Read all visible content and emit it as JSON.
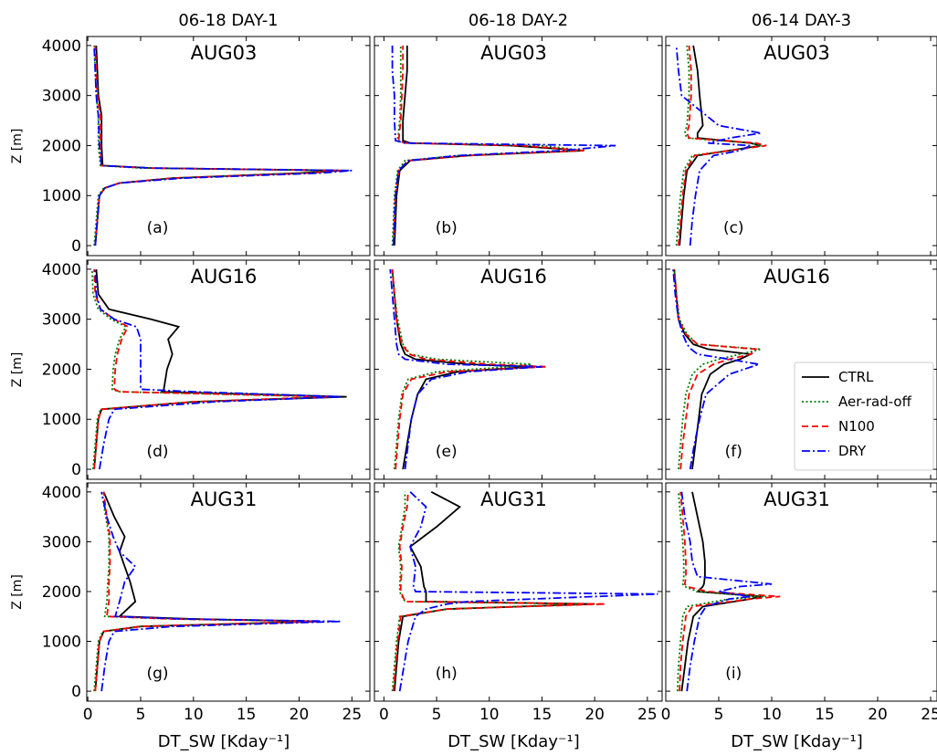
{
  "chart_data": [
    {
      "type": "line",
      "title": "06-18 DAY-1",
      "panel_title": "AUG03",
      "annotation": "(a)",
      "ylabel": "Z [m]",
      "y": [
        0,
        500,
        1000,
        1150,
        1250,
        1350,
        1450,
        1500,
        1550,
        1600,
        2000,
        2600,
        3000,
        3500,
        4000
      ],
      "series": [
        {
          "color": "#000000",
          "linestyle": "solid",
          "values": [
            0.7,
            0.9,
            1.1,
            1.6,
            3,
            8,
            20,
            24,
            6,
            1.4,
            1.3,
            1.3,
            1.0,
            0.9,
            0.8
          ]
        },
        {
          "color": "#008000",
          "linestyle": "dotted",
          "values": [
            0.6,
            0.8,
            1.0,
            1.5,
            3,
            8,
            20,
            23,
            5,
            1.2,
            1.0,
            1.0,
            0.8,
            0.7,
            0.6
          ]
        },
        {
          "color": "#ff0000",
          "linestyle": "dashed",
          "values": [
            0.7,
            0.9,
            1.1,
            1.6,
            3,
            8,
            21,
            24,
            6,
            1.3,
            1.2,
            1.2,
            0.9,
            0.8,
            0.7
          ]
        },
        {
          "color": "#0000ff",
          "linestyle": "dashdot",
          "values": [
            0.7,
            0.9,
            1.1,
            1.6,
            3,
            9,
            22,
            25,
            6,
            1.3,
            1.1,
            1.0,
            0.8,
            0.7,
            0.6
          ]
        }
      ],
      "xlim": [
        -0.1,
        26.7
      ],
      "ylim": [
        -200,
        4180
      ],
      "xticks": [
        0,
        5,
        10,
        15,
        20,
        25
      ],
      "yticks": [
        0,
        1000,
        2000,
        3000,
        4000
      ]
    },
    {
      "type": "line",
      "title": "06-18 DAY-2",
      "panel_title": "AUG03",
      "annotation": "(b)",
      "y": [
        0,
        500,
        1000,
        1500,
        1700,
        1800,
        1900,
        2000,
        2050,
        2100,
        2500,
        3000,
        3500,
        4000
      ],
      "series": [
        {
          "color": "#000000",
          "linestyle": "solid",
          "values": [
            1,
            1.1,
            1.2,
            1.5,
            2.5,
            8,
            19,
            12,
            2.5,
            1.8,
            1.8,
            2,
            2.2,
            2.2
          ]
        },
        {
          "color": "#008000",
          "linestyle": "dotted",
          "values": [
            0.8,
            0.9,
            1,
            1.3,
            2,
            7,
            19,
            15,
            2,
            1.3,
            1.5,
            1.6,
            1.6,
            1.6
          ]
        },
        {
          "color": "#ff0000",
          "linestyle": "dashed",
          "values": [
            0.9,
            1,
            1.1,
            1.4,
            2.3,
            8,
            19,
            13,
            2,
            1.4,
            1.6,
            1.7,
            1.8,
            1.8
          ]
        },
        {
          "color": "#0000ff",
          "linestyle": "dashdot",
          "values": [
            0.9,
            1,
            1.1,
            1.4,
            2.3,
            7,
            17,
            22,
            2,
            1.1,
            1.0,
            1.0,
            0.8,
            0.8
          ]
        }
      ],
      "xlim": [
        -0.9,
        26.4
      ],
      "ylim": [
        -200,
        4180
      ],
      "xticks": [
        0,
        5,
        10,
        15,
        20,
        25
      ],
      "yticks": [
        0,
        1000,
        2000,
        3000,
        4000
      ]
    },
    {
      "type": "line",
      "title": "06-14 DAY-3",
      "panel_title": "AUG03",
      "annotation": "(c)",
      "y": [
        0,
        500,
        1000,
        1500,
        1800,
        1900,
        2000,
        2050,
        2150,
        2250,
        2400,
        3000,
        3500,
        4000
      ],
      "series": [
        {
          "color": "#000000",
          "linestyle": "solid",
          "values": [
            1.3,
            1.5,
            1.7,
            2,
            3,
            6,
            9,
            8,
            3,
            3,
            3.5,
            3.2,
            3,
            2.6
          ]
        },
        {
          "color": "#008000",
          "linestyle": "dotted",
          "values": [
            1.0,
            1.2,
            1.4,
            1.7,
            2.5,
            6,
            9,
            8,
            2,
            1.8,
            2,
            2.2,
            2.2,
            2.0
          ]
        },
        {
          "color": "#ff0000",
          "linestyle": "dashed",
          "values": [
            1.2,
            1.4,
            1.6,
            1.9,
            2.7,
            6,
            9.5,
            8.5,
            2.2,
            2,
            2.2,
            2.4,
            2.4,
            2.2
          ]
        },
        {
          "color": "#0000ff",
          "linestyle": "dashdot",
          "values": [
            2.3,
            2.5,
            2.8,
            3.2,
            4.5,
            7,
            8,
            4,
            6,
            9,
            5,
            1.5,
            1.2,
            1.0
          ]
        }
      ],
      "xlim": [
        0,
        25.6
      ],
      "ylim": [
        -200,
        4180
      ],
      "xticks": [
        0,
        5,
        10,
        15,
        20,
        25
      ],
      "yticks": [
        0,
        1000,
        2000,
        3000,
        4000
      ]
    },
    {
      "type": "line",
      "panel_title": "AUG16",
      "annotation": "(d)",
      "ylabel": "Z [m]",
      "y": [
        0,
        500,
        1000,
        1200,
        1350,
        1450,
        1550,
        1600,
        2000,
        2300,
        2600,
        2850,
        3000,
        3200,
        3500,
        4000
      ],
      "series": [
        {
          "color": "#000000",
          "linestyle": "solid",
          "values": [
            0.6,
            0.8,
            1.0,
            1.3,
            10,
            24.5,
            7,
            7.2,
            7.5,
            8,
            7.6,
            8.6,
            6,
            2,
            1.0,
            0.8
          ]
        },
        {
          "color": "#008000",
          "linestyle": "dotted",
          "values": [
            0.5,
            0.7,
            0.9,
            1.2,
            10,
            23,
            3,
            2.3,
            2.4,
            2.6,
            3,
            3.6,
            2.2,
            1,
            0.5,
            0.4
          ]
        },
        {
          "color": "#ff0000",
          "linestyle": "dashed",
          "values": [
            0.6,
            0.8,
            1.0,
            1.3,
            10,
            23,
            3,
            2.5,
            2.6,
            2.8,
            3.2,
            3.8,
            2.5,
            1.2,
            0.7,
            0.6
          ]
        },
        {
          "color": "#0000ff",
          "linestyle": "dashdot",
          "values": [
            1.1,
            1.5,
            2.0,
            2.5,
            12,
            24,
            10,
            5,
            5,
            5,
            5,
            4.6,
            2.5,
            1.2,
            0.8,
            0.7
          ]
        }
      ],
      "xlim": [
        -0.1,
        26.7
      ],
      "ylim": [
        -200,
        4180
      ],
      "xticks": [
        0,
        5,
        10,
        15,
        20,
        25
      ],
      "yticks": [
        0,
        1000,
        2000,
        3000,
        4000
      ]
    },
    {
      "type": "line",
      "panel_title": "AUG16",
      "annotation": "(e)",
      "y": [
        0,
        500,
        1000,
        1500,
        1800,
        1950,
        2050,
        2100,
        2200,
        2300,
        2500,
        3000,
        3500,
        4000
      ],
      "series": [
        {
          "color": "#000000",
          "linestyle": "solid",
          "values": [
            1.8,
            2.2,
            2.6,
            3.2,
            4,
            7,
            14,
            8,
            3,
            2,
            1.6,
            1.2,
            1.0,
            0.8
          ]
        },
        {
          "color": "#008000",
          "linestyle": "dotted",
          "values": [
            1.0,
            1.2,
            1.4,
            1.7,
            2.3,
            5,
            12,
            14,
            5,
            2.5,
            1.8,
            1.3,
            1,
            0.8
          ]
        },
        {
          "color": "#ff0000",
          "linestyle": "dashed",
          "values": [
            1.1,
            1.3,
            1.5,
            1.8,
            2.6,
            6,
            15.5,
            10,
            4,
            2.4,
            1.7,
            1.2,
            1,
            0.8
          ]
        },
        {
          "color": "#0000ff",
          "linestyle": "dashdot",
          "values": [
            2.0,
            2.3,
            2.6,
            3.2,
            4.5,
            8,
            15,
            6,
            2,
            1.4,
            1.2,
            1.0,
            0.8,
            0.6
          ]
        }
      ],
      "xlim": [
        -0.9,
        26.4
      ],
      "ylim": [
        -200,
        4180
      ],
      "xticks": [
        0,
        5,
        10,
        15,
        20,
        25
      ],
      "yticks": [
        0,
        1000,
        2000,
        3000,
        4000
      ]
    },
    {
      "type": "line",
      "panel_title": "AUG16",
      "annotation": "(f)",
      "legend": "lower right",
      "y": [
        0,
        500,
        1000,
        1500,
        1900,
        2100,
        2200,
        2300,
        2400,
        2500,
        2700,
        3000,
        3500,
        4000
      ],
      "series": [
        {
          "name": "CTRL",
          "color": "#000000",
          "linestyle": "solid",
          "values": [
            2.5,
            2.8,
            3.1,
            3.4,
            4.2,
            5.5,
            7,
            8,
            4,
            2.6,
            1.8,
            1.2,
            1.0,
            0.8
          ]
        },
        {
          "name": "Aer-rad-off",
          "color": "#008000",
          "linestyle": "dotted",
          "values": [
            1.2,
            1.4,
            1.6,
            1.9,
            2.5,
            3.5,
            5,
            7,
            9,
            3,
            2,
            1.3,
            1,
            0.8
          ]
        },
        {
          "name": "N100",
          "color": "#ff0000",
          "linestyle": "dashed",
          "values": [
            1.4,
            1.6,
            1.9,
            2.2,
            3,
            4.5,
            6,
            8,
            8.5,
            3,
            1.9,
            1.2,
            1,
            0.8
          ]
        },
        {
          "name": "DRY",
          "color": "#0000ff",
          "linestyle": "dashdot",
          "values": [
            2.3,
            2.7,
            3.2,
            3.8,
            6,
            8.8,
            6,
            3,
            2.4,
            2,
            1.6,
            1.2,
            0.9,
            0.7
          ]
        }
      ],
      "xlim": [
        0,
        25.6
      ],
      "ylim": [
        -200,
        4180
      ],
      "xticks": [
        0,
        5,
        10,
        15,
        20,
        25
      ],
      "yticks": [
        0,
        1000,
        2000,
        3000,
        4000
      ]
    },
    {
      "type": "line",
      "panel_title": "AUG31",
      "annotation": "(g)",
      "ylabel": "Z [m]",
      "xlabel": "DT_SW [Kday⁻¹]",
      "y": [
        0,
        500,
        1000,
        1200,
        1300,
        1400,
        1450,
        1500,
        1800,
        2200,
        2500,
        2800,
        3100,
        3500,
        4000
      ],
      "series": [
        {
          "color": "#000000",
          "linestyle": "solid",
          "values": [
            0.7,
            0.9,
            1.1,
            1.5,
            5,
            22,
            10,
            3,
            4.5,
            4,
            3.5,
            3,
            3.5,
            2.5,
            1.5
          ]
        },
        {
          "color": "#008000",
          "linestyle": "dotted",
          "values": [
            0.6,
            0.8,
            1.0,
            1.4,
            5,
            21,
            8,
            1.6,
            1.8,
            1.9,
            2,
            2,
            2,
            1.7,
            1.3
          ]
        },
        {
          "color": "#ff0000",
          "linestyle": "dashed",
          "values": [
            0.7,
            0.9,
            1.1,
            1.5,
            5,
            22,
            8,
            1.8,
            2,
            2,
            2.1,
            2.1,
            2.1,
            1.8,
            1.5
          ]
        },
        {
          "color": "#0000ff",
          "linestyle": "dashdot",
          "values": [
            1.3,
            1.6,
            2.0,
            2.5,
            8,
            24,
            9,
            2.6,
            3,
            3.5,
            4.5,
            3,
            2.4,
            1.8,
            1.3
          ]
        }
      ],
      "xlim": [
        -0.1,
        26.7
      ],
      "ylim": [
        -200,
        4180
      ],
      "xticks": [
        0,
        5,
        10,
        15,
        20,
        25
      ],
      "yticks": [
        0,
        1000,
        2000,
        3000,
        4000
      ]
    },
    {
      "type": "line",
      "panel_title": "AUG31",
      "annotation": "(h)",
      "xlabel": "DT_SW [Kday⁻¹]",
      "y": [
        0,
        500,
        1000,
        1500,
        1650,
        1750,
        1800,
        1950,
        2000,
        2100,
        2500,
        2900,
        3300,
        3700,
        4000
      ],
      "series": [
        {
          "color": "#000000",
          "linestyle": "solid",
          "values": [
            1,
            1.2,
            1.4,
            1.8,
            6,
            20,
            4,
            4,
            4,
            3.8,
            3.5,
            2.5,
            5,
            7.2,
            4.5
          ]
        },
        {
          "color": "#008000",
          "linestyle": "dotted",
          "values": [
            0.8,
            1,
            1.2,
            1.5,
            6,
            19,
            2,
            1.6,
            1.5,
            1.5,
            1.6,
            1.4,
            1.7,
            2,
            2
          ]
        },
        {
          "color": "#ff0000",
          "linestyle": "dashed",
          "values": [
            0.9,
            1.1,
            1.3,
            1.6,
            6,
            21,
            2,
            1.7,
            1.6,
            1.6,
            1.7,
            1.5,
            1.8,
            2.2,
            2.3
          ]
        },
        {
          "color": "#0000ff",
          "linestyle": "dashdot",
          "values": [
            1.5,
            1.9,
            2.3,
            3,
            4,
            6,
            8,
            26,
            3,
            2.8,
            3,
            2.5,
            3.5,
            4,
            2.5
          ]
        }
      ],
      "xlim": [
        -0.9,
        26.4
      ],
      "ylim": [
        -200,
        4180
      ],
      "xticks": [
        0,
        5,
        10,
        15,
        20,
        25
      ],
      "yticks": [
        0,
        1000,
        2000,
        3000,
        4000
      ]
    },
    {
      "type": "line",
      "panel_title": "AUG31",
      "annotation": "(i)",
      "xlabel": "DT_SW [Kday⁻¹]",
      "y": [
        0,
        500,
        1000,
        1500,
        1700,
        1850,
        1900,
        2000,
        2100,
        2150,
        2300,
        2600,
        3000,
        3500,
        4000
      ],
      "series": [
        {
          "color": "#000000",
          "linestyle": "solid",
          "values": [
            1.5,
            1.8,
            2.1,
            2.6,
            3.5,
            8,
            9,
            3,
            3.5,
            3.6,
            3.7,
            3.7,
            3.5,
            3,
            2.5
          ]
        },
        {
          "color": "#008000",
          "linestyle": "dotted",
          "values": [
            1.1,
            1.2,
            1.4,
            1.6,
            2,
            6,
            9.5,
            3,
            1.8,
            1.6,
            1.7,
            1.7,
            1.6,
            1.4,
            1.2
          ]
        },
        {
          "color": "#ff0000",
          "linestyle": "dashed",
          "values": [
            1.3,
            1.4,
            1.6,
            1.9,
            2.5,
            8,
            10.8,
            4,
            2,
            1.8,
            1.9,
            1.9,
            1.8,
            1.6,
            1.4
          ]
        },
        {
          "color": "#0000ff",
          "linestyle": "dashdot",
          "values": [
            2.0,
            2.3,
            2.7,
            3.2,
            3.8,
            6,
            8,
            5,
            7,
            10,
            3,
            2.5,
            2.3,
            1.8,
            1.5
          ]
        }
      ],
      "xlim": [
        0,
        25.6
      ],
      "ylim": [
        -200,
        4180
      ],
      "xticks": [
        0,
        5,
        10,
        15,
        20,
        25
      ],
      "yticks": [
        0,
        1000,
        2000,
        3000,
        4000
      ]
    }
  ]
}
